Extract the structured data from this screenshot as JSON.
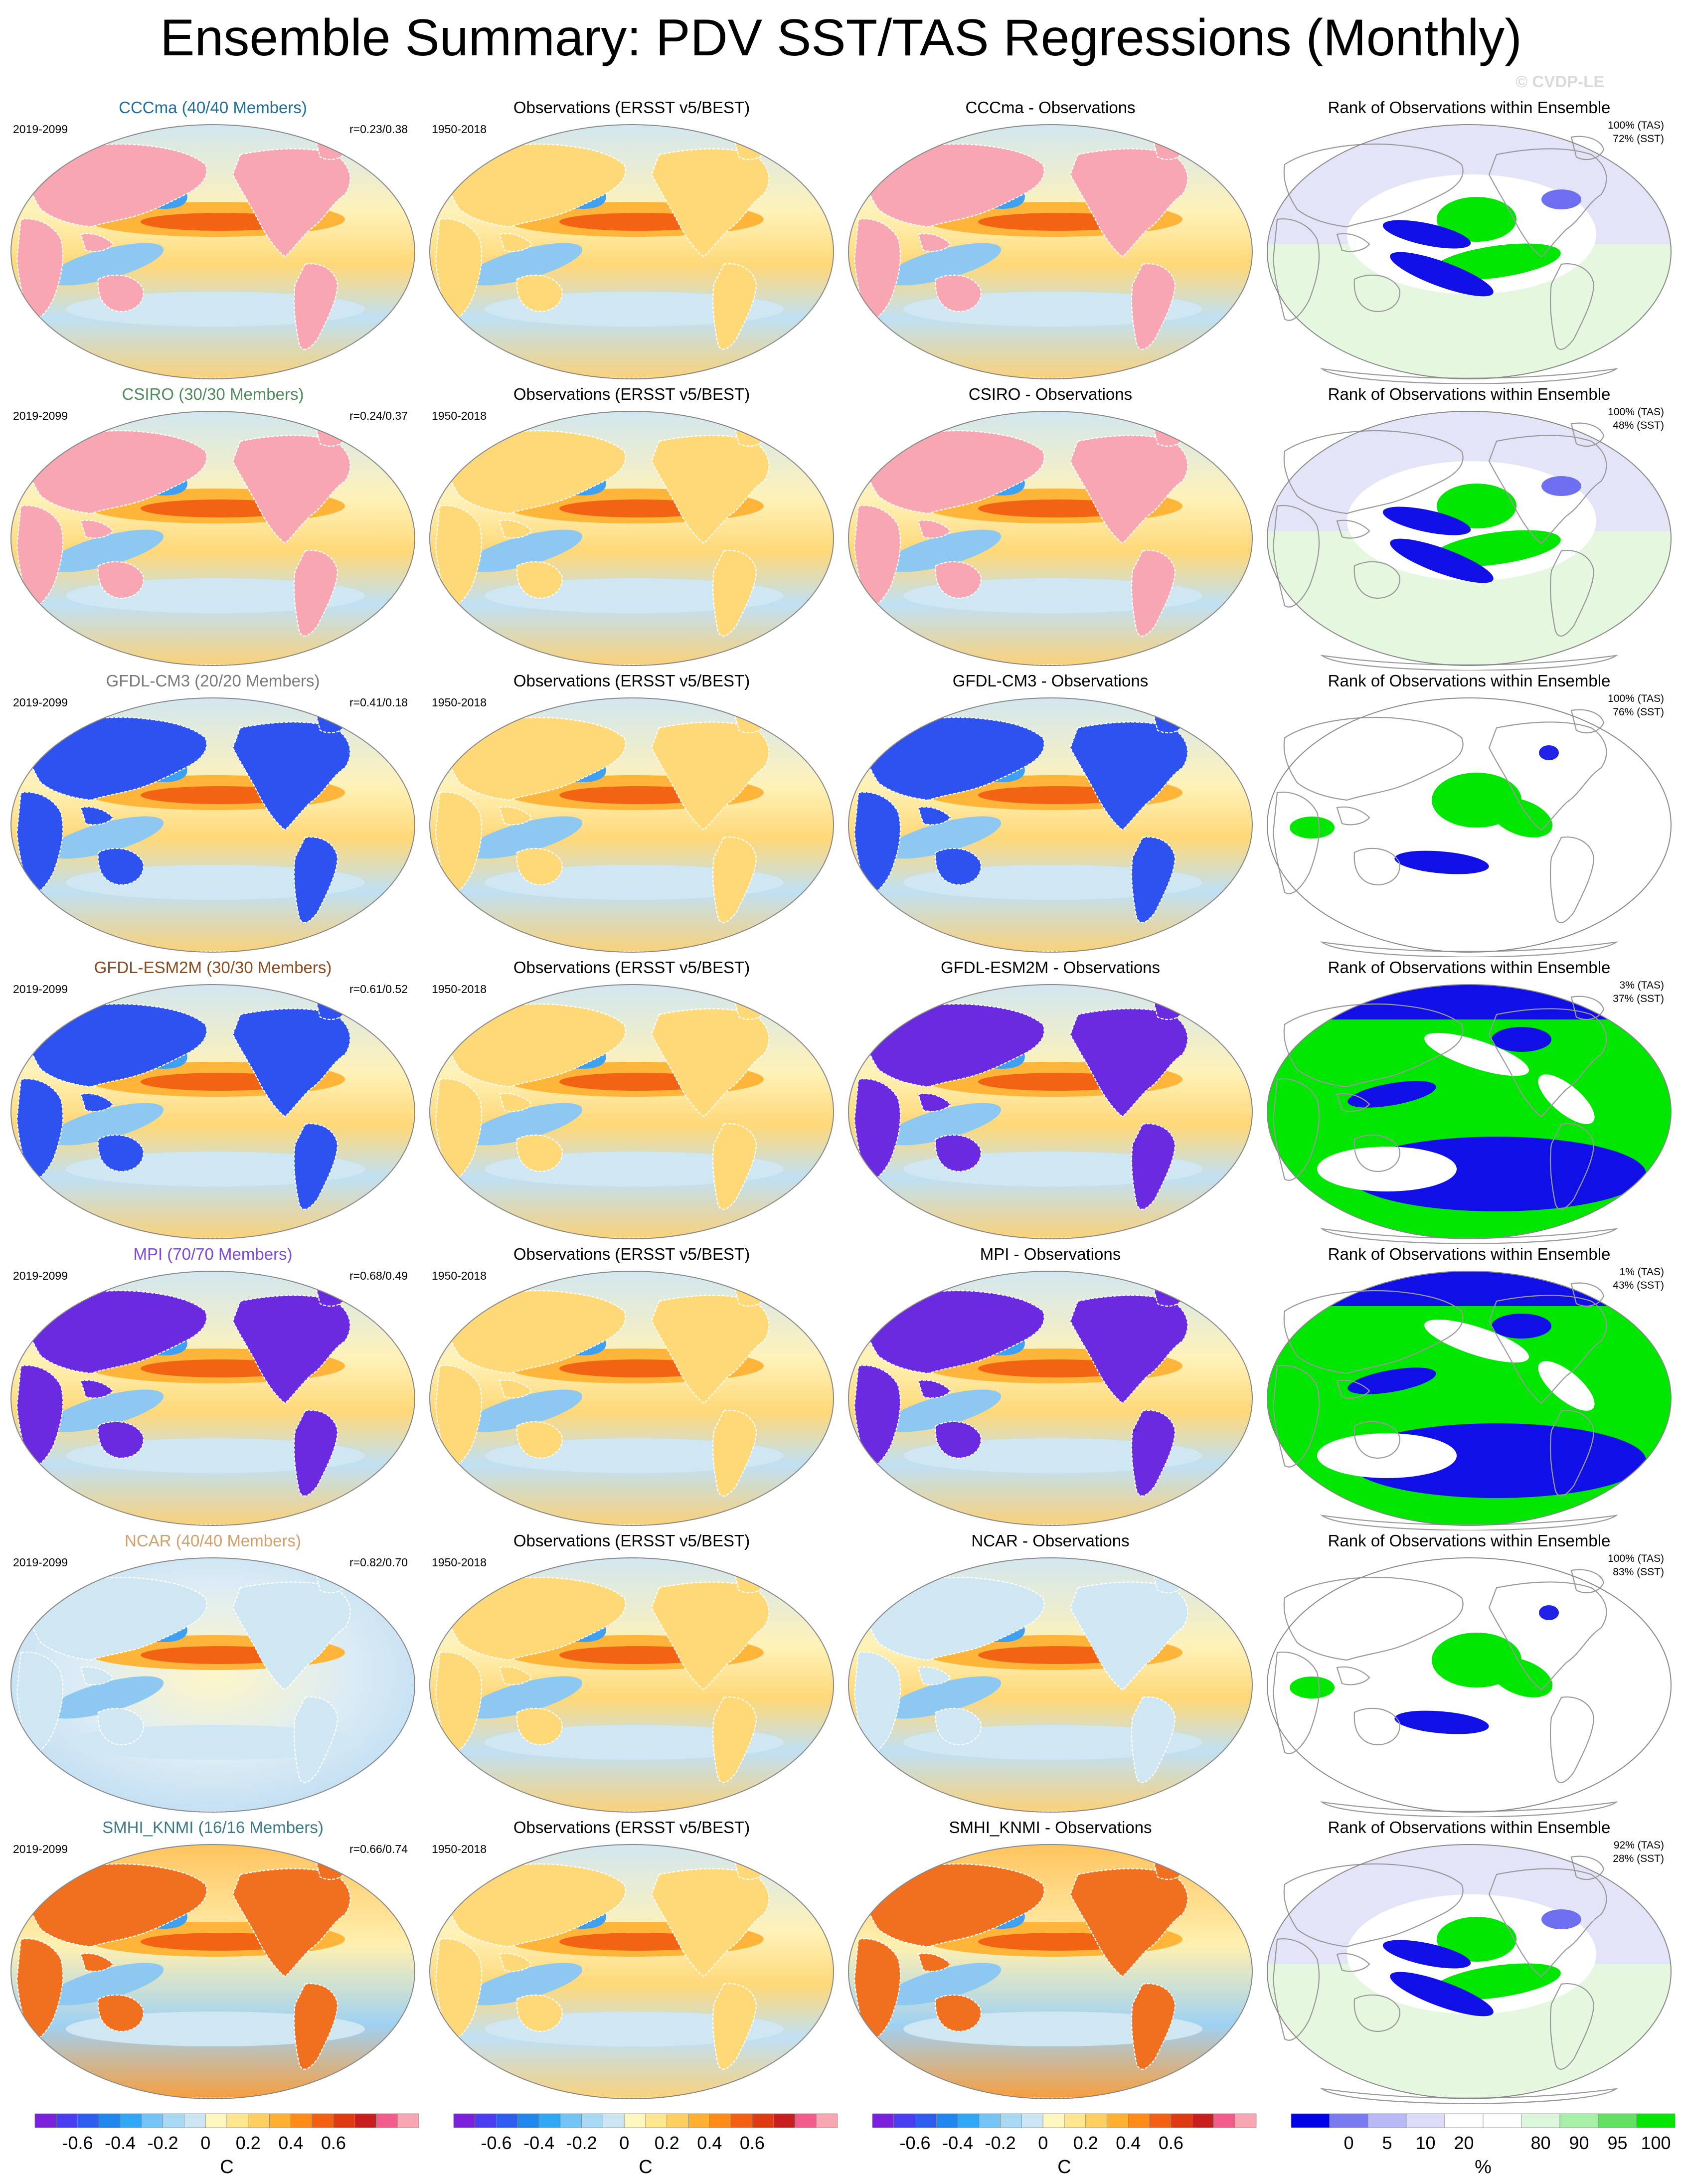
{
  "title": "Ensemble Summary: PDV SST/TAS Regressions (Monthly)",
  "watermark": "© CVDP-LE",
  "obs_title": "Observations (ERSST v5/BEST)",
  "obs_period": "1950-2018",
  "rank_title": "Rank of Observations within Ensemble",
  "rows": [
    {
      "model_title": "CCCma (40/40 Members)",
      "model_color": "#1f6f9a",
      "period": "2019-2099",
      "corr": "r=0.23/0.38",
      "diff_title": "CCCma - Observations",
      "rank": "100% (TAS)\n72% (SST)",
      "model_style": "pinkland",
      "diff_style": "pinkland",
      "rank_style": "lav_low"
    },
    {
      "model_title": "CSIRO (30/30 Members)",
      "model_color": "#4f8a5c",
      "period": "2019-2099",
      "corr": "r=0.24/0.37",
      "diff_title": "CSIRO - Observations",
      "rank": "100% (TAS)\n48% (SST)",
      "model_style": "pinkland",
      "diff_style": "pinkland",
      "rank_style": "lav_mid"
    },
    {
      "model_title": "GFDL-CM3 (20/20 Members)",
      "model_color": "#7a7a7a",
      "period": "2019-2099",
      "corr": "r=0.41/0.18",
      "diff_title": "GFDL-CM3 - Observations",
      "rank": "100% (TAS)\n76% (SST)",
      "model_style": "blueland",
      "diff_style": "blueland",
      "rank_style": "white_sparse"
    },
    {
      "model_title": "GFDL-ESM2M (30/30 Members)",
      "model_color": "#8a4b1e",
      "period": "2019-2099",
      "corr": "r=0.61/0.52",
      "diff_title": "GFDL-ESM2M - Observations",
      "rank": "3% (TAS)\n37% (SST)",
      "model_style": "blueland",
      "diff_style": "purpleland",
      "rank_style": "green_full"
    },
    {
      "model_title": "MPI (70/70 Members)",
      "model_color": "#7b4bd6",
      "period": "2019-2099",
      "corr": "r=0.68/0.49",
      "diff_title": "MPI - Observations",
      "rank": "1% (TAS)\n43% (SST)",
      "model_style": "purpleland",
      "diff_style": "purpleland",
      "rank_style": "green_full"
    },
    {
      "model_title": "NCAR (40/40 Members)",
      "model_color": "#d3a06b",
      "period": "2019-2099",
      "corr": "r=0.82/0.70",
      "diff_title": "NCAR - Observations",
      "rank": "100% (TAS)\n83% (SST)",
      "model_style": "pale",
      "diff_style": "lightblue",
      "rank_style": "white_sparse"
    },
    {
      "model_title": "SMHI_KNMI (16/16 Members)",
      "model_color": "#3c7a86",
      "period": "2019-2099",
      "corr": "r=0.66/0.74",
      "diff_title": "SMHI_KNMI - Observations",
      "rank": "92% (TAS)\n28% (SST)",
      "model_style": "warmland",
      "diff_style": "warmland",
      "rank_style": "lav_mid"
    }
  ],
  "colorbar_temp": {
    "colors": [
      "#7a1fdc",
      "#4a3cf0",
      "#2d5cf0",
      "#1f86f0",
      "#2ea8f5",
      "#74c4f5",
      "#a9d8f2",
      "#cde6f3",
      "#fff7c0",
      "#ffe690",
      "#ffd060",
      "#ffb030",
      "#ff8a18",
      "#f25f10",
      "#e03a14",
      "#c81e1e",
      "#f25b8a",
      "#f7a6b2"
    ],
    "ticks": [
      "-0.6",
      "-0.4",
      "-0.2",
      "0",
      "0.2",
      "0.4",
      "0.6"
    ],
    "tick_pos": [
      1,
      3,
      5,
      7,
      9,
      11,
      13
    ],
    "unit": "C"
  },
  "colorbar_rank": {
    "colors": [
      "#0000e6",
      "#7a7af0",
      "#b9b9f5",
      "#ddddf8",
      "#ffffff",
      "#ffffff",
      "#ddf7dd",
      "#a8f0a8",
      "#63e063",
      "#00e600"
    ],
    "ticks": [
      "0",
      "5",
      "10",
      "20",
      "80",
      "90",
      "95",
      "100"
    ],
    "tick_pos": [
      0.5,
      1.5,
      2.5,
      3.5,
      5.5,
      6.5,
      7.5,
      8.5
    ],
    "unit": "%"
  }
}
